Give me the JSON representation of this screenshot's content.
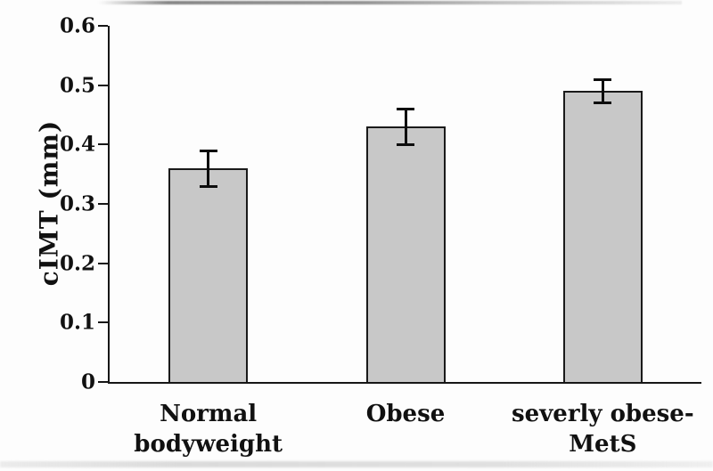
{
  "chart_data": {
    "type": "bar",
    "title": "",
    "xlabel": "",
    "ylabel": "cIMT (mm)",
    "categories": [
      "Normal\nbodyweight",
      "Obese",
      "severly obese-\nMetS"
    ],
    "values": [
      0.36,
      0.43,
      0.49
    ],
    "error_bars": [
      0.03,
      0.03,
      0.02
    ],
    "ylim": [
      0,
      0.6
    ],
    "yticks": [
      0,
      0.1,
      0.2,
      0.3,
      0.4,
      0.5,
      0.6
    ],
    "ytick_labels": [
      "0",
      "0.1",
      "0.2",
      "0.3",
      "0.4",
      "0.5",
      "0.6"
    ],
    "grid": "off",
    "legend": "none",
    "bar_fill_color": "#c8c8c8",
    "bar_border_color": "#1a1a1a",
    "axis_color": "#161616",
    "text_color": "#111111"
  }
}
